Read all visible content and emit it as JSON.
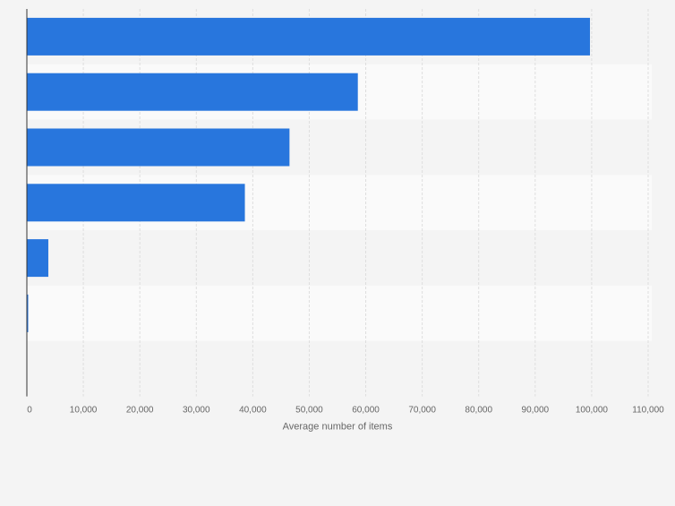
{
  "chart_data": {
    "type": "bar",
    "orientation": "horizontal",
    "categories": [
      "",
      "",
      "",
      "",
      "",
      "",
      ""
    ],
    "values": [
      99700,
      58600,
      46500,
      38600,
      3800,
      200,
      0
    ],
    "xlabel": "Average number of items",
    "ylabel": "",
    "xlim": [
      0,
      110000
    ],
    "xticks": [
      0,
      10000,
      20000,
      30000,
      40000,
      50000,
      60000,
      70000,
      80000,
      90000,
      100000,
      110000
    ],
    "xtick_labels": [
      "0",
      "10,000",
      "20,000",
      "30,000",
      "40,000",
      "50,000",
      "60,000",
      "70,000",
      "80,000",
      "90,000",
      "100,000",
      "110,000"
    ],
    "grid": true,
    "legend": "none",
    "bar_color": "#2876dd",
    "band_colors": [
      "#f4f4f4",
      "#fafafa"
    ],
    "grid_color": "#dedede",
    "axis_color": "#333333",
    "text_color": "#666666"
  }
}
